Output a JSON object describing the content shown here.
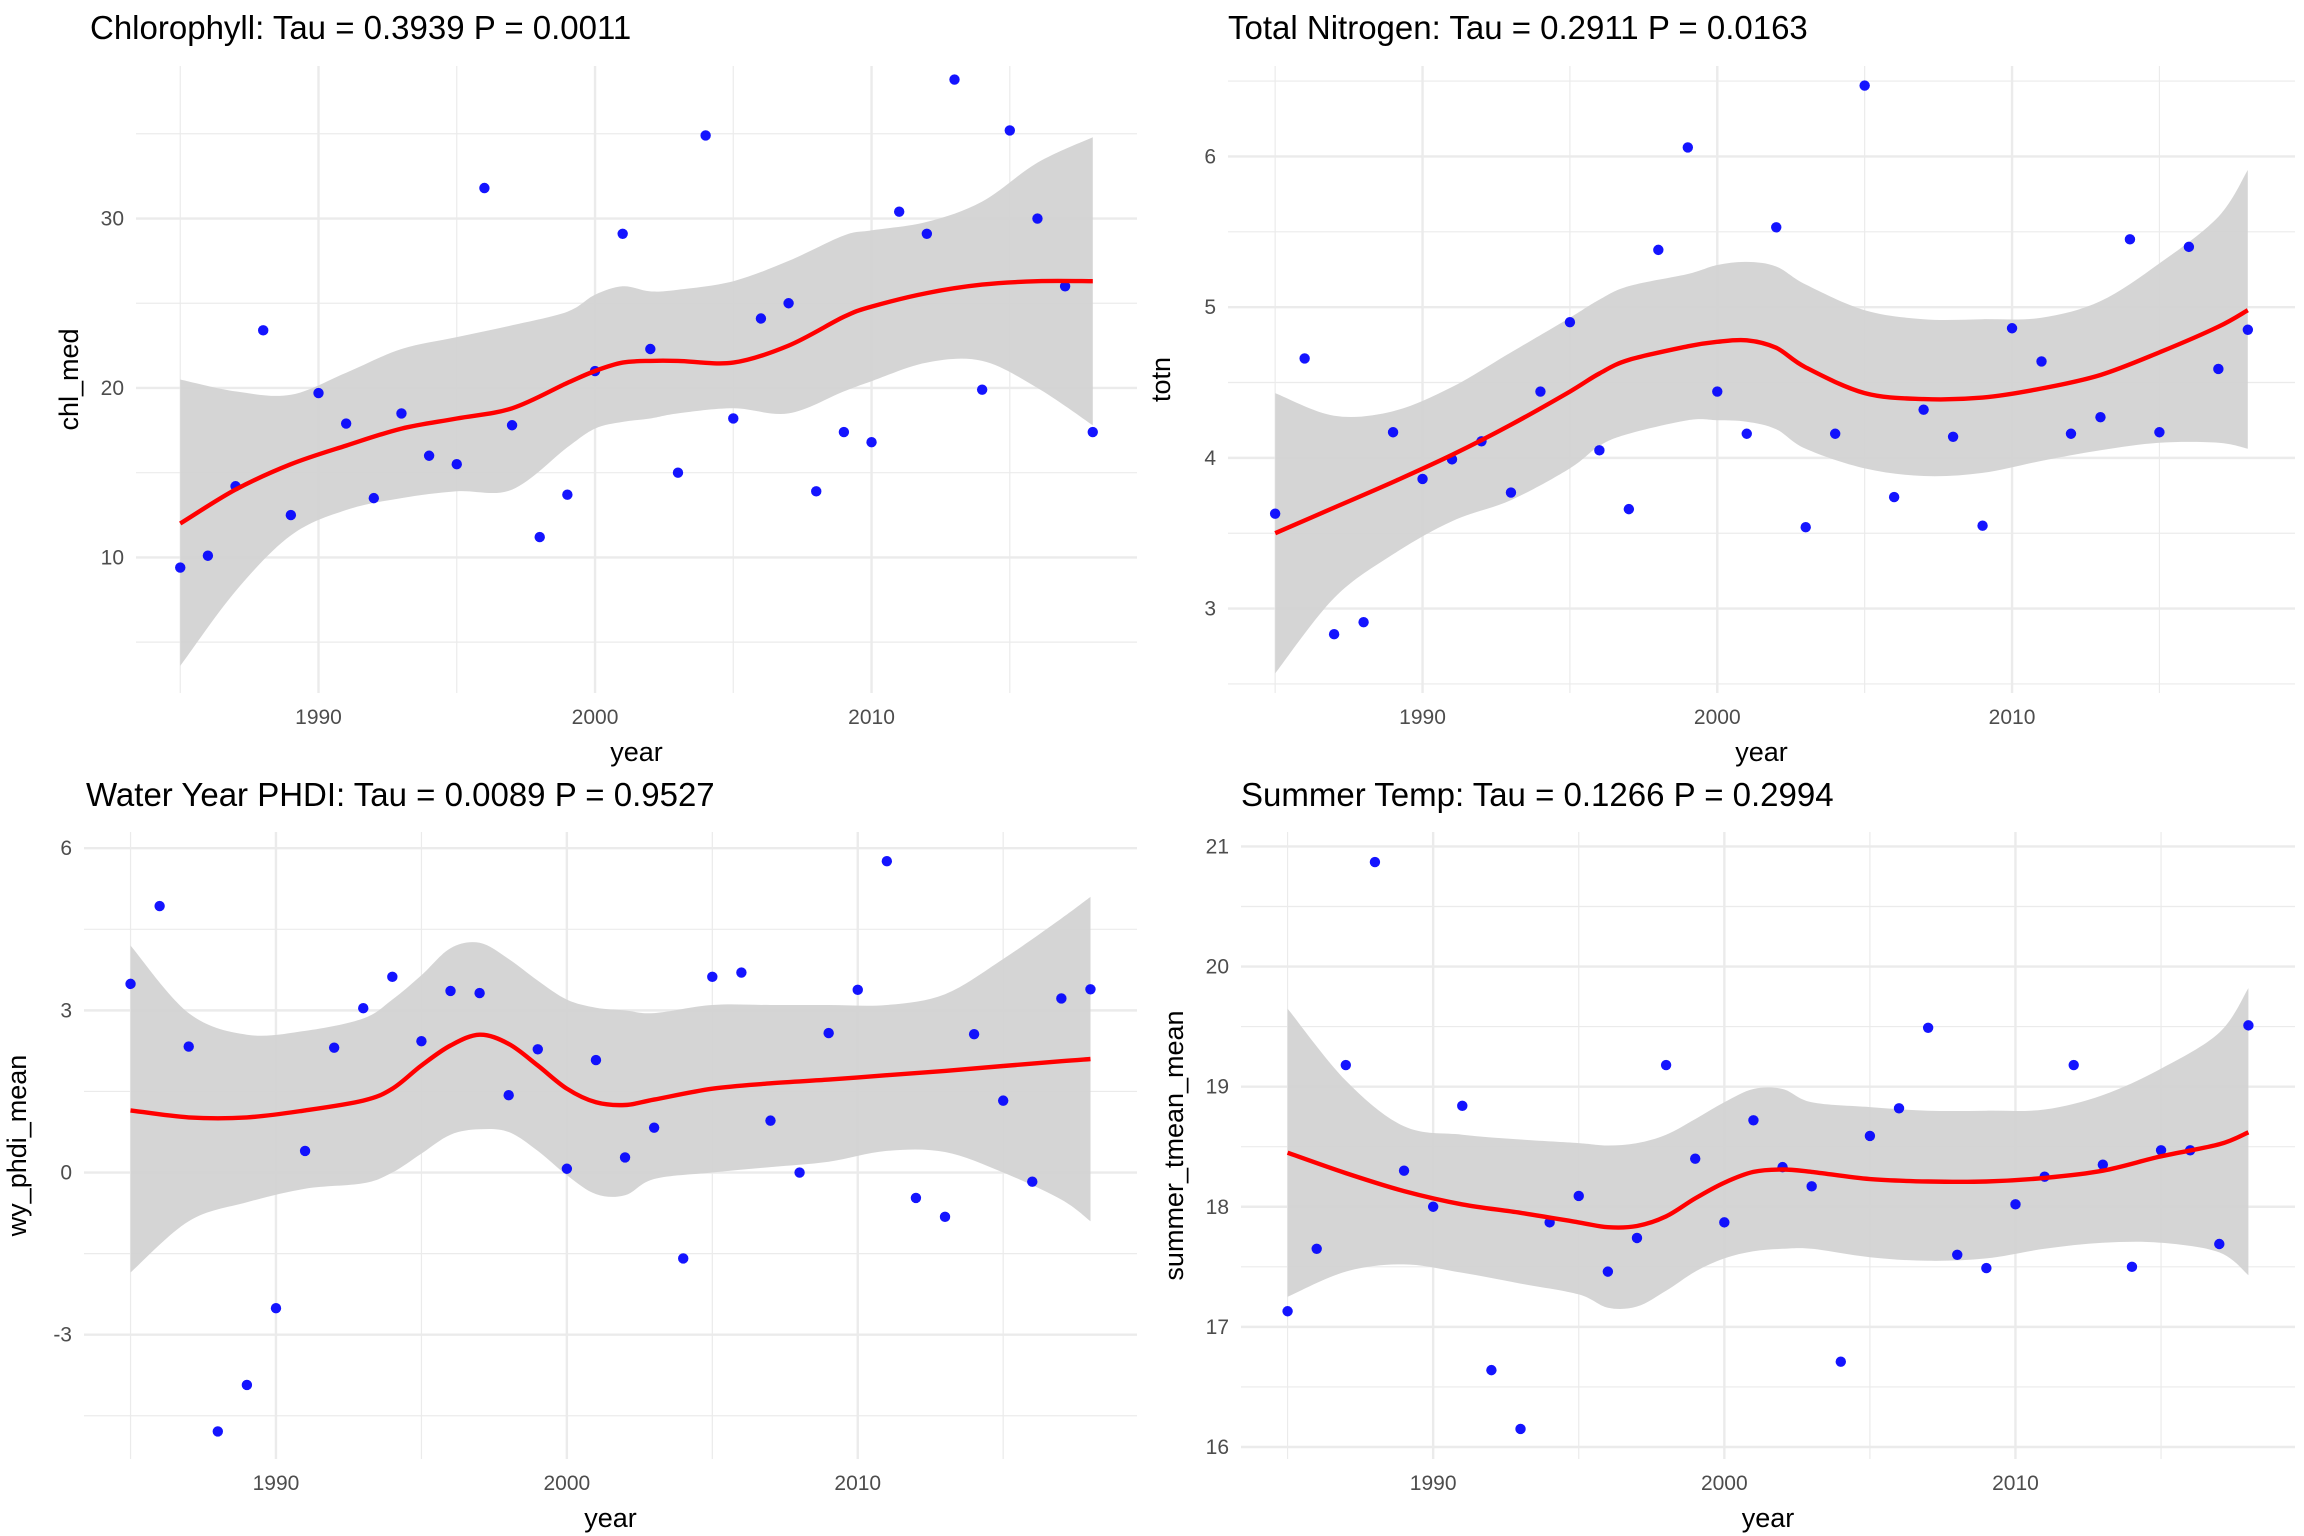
{
  "chart_data": [
    {
      "id": "chl",
      "type": "scatter",
      "title": "Chlorophyll: Tau = 0.3939 P = 0.0011",
      "xlabel": "year",
      "ylabel": "chl_med",
      "xlim": [
        1983.4,
        2019.6
      ],
      "ylim": [
        2.0,
        39.0
      ],
      "xticks": [
        1990,
        2000,
        2010
      ],
      "xminor": [
        1985,
        1995,
        2005,
        2015
      ],
      "yticks": [
        10,
        20,
        30
      ],
      "yminor": [
        5,
        15,
        25,
        35
      ],
      "grid": true,
      "point_color": "#0000ff",
      "smooth_color": "#ff0000",
      "ribbon_color": "#d3d3d3",
      "x": [
        1985,
        1986,
        1987,
        1988,
        1989,
        1990,
        1991,
        1992,
        1993,
        1994,
        1995,
        1996,
        1997,
        1998,
        1999,
        2000,
        2001,
        2002,
        2003,
        2004,
        2005,
        2006,
        2007,
        2008,
        2009,
        2010,
        2011,
        2012,
        2013,
        2014,
        2015,
        2016,
        2017,
        2018
      ],
      "y": [
        9.4,
        10.1,
        14.2,
        23.4,
        12.5,
        19.7,
        17.9,
        13.5,
        18.5,
        16.0,
        15.5,
        31.8,
        17.8,
        11.2,
        13.7,
        21.0,
        29.1,
        22.3,
        15.0,
        34.9,
        18.2,
        24.1,
        25.0,
        13.9,
        17.4,
        16.8,
        30.4,
        29.1,
        38.2,
        19.9,
        35.2,
        30.0,
        26.0,
        17.4
      ],
      "smooth": {
        "x": [
          1985,
          1987,
          1989,
          1991,
          1993,
          1995,
          1997,
          1999,
          2000,
          2001,
          2002,
          2003,
          2005,
          2007,
          2009,
          2010,
          2012,
          2014,
          2016,
          2018
        ],
        "y": [
          12.0,
          14.0,
          15.5,
          16.6,
          17.6,
          18.2,
          18.8,
          20.3,
          21.0,
          21.5,
          21.6,
          21.6,
          21.5,
          22.5,
          24.2,
          24.8,
          25.6,
          26.1,
          26.3,
          26.3
        ],
        "lo": [
          3.6,
          8.0,
          11.3,
          12.8,
          13.5,
          13.9,
          14.0,
          16.5,
          17.6,
          18.0,
          18.2,
          18.5,
          18.8,
          18.5,
          19.8,
          20.4,
          21.5,
          21.6,
          20.0,
          17.8
        ],
        "hi": [
          20.5,
          19.8,
          19.6,
          20.9,
          22.3,
          23.0,
          23.7,
          24.5,
          25.5,
          26.0,
          25.7,
          25.8,
          26.3,
          27.5,
          29.0,
          29.3,
          29.8,
          31.0,
          33.3,
          34.8
        ]
      }
    },
    {
      "id": "totn",
      "type": "scatter",
      "title": "Total Nitrogen: Tau = 0.2911 P = 0.0163",
      "xlabel": "year",
      "ylabel": "totn",
      "xlim": [
        1983.4,
        2019.6
      ],
      "ylim": [
        2.44,
        6.6
      ],
      "xticks": [
        1990,
        2000,
        2010
      ],
      "xminor": [
        1985,
        1995,
        2005,
        2015
      ],
      "yticks": [
        3,
        4,
        5,
        6
      ],
      "yminor": [
        2.5,
        3.5,
        4.5,
        5.5,
        6.5
      ],
      "grid": true,
      "point_color": "#0000ff",
      "smooth_color": "#ff0000",
      "ribbon_color": "#d3d3d3",
      "x": [
        1985,
        1986,
        1987,
        1988,
        1989,
        1990,
        1991,
        1992,
        1993,
        1994,
        1995,
        1996,
        1997,
        1998,
        1999,
        2000,
        2001,
        2002,
        2003,
        2004,
        2005,
        2006,
        2007,
        2008,
        2009,
        2010,
        2011,
        2012,
        2013,
        2014,
        2015,
        2016,
        2017,
        2018
      ],
      "y": [
        3.63,
        4.66,
        2.83,
        2.91,
        4.17,
        3.86,
        3.99,
        4.11,
        3.77,
        4.44,
        4.9,
        4.05,
        3.66,
        5.38,
        6.06,
        4.44,
        4.16,
        5.53,
        3.54,
        4.16,
        6.47,
        3.74,
        4.32,
        4.14,
        3.55,
        4.86,
        4.64,
        4.16,
        4.27,
        5.45,
        4.17,
        5.4,
        4.59,
        4.85
      ],
      "smooth": {
        "x": [
          1985,
          1987,
          1989,
          1991,
          1993,
          1995,
          1996,
          1997,
          1999,
          2000,
          2001,
          2002,
          2003,
          2005,
          2007,
          2009,
          2011,
          2013,
          2015,
          2017,
          2018
        ],
        "y": [
          3.5,
          3.67,
          3.84,
          4.02,
          4.22,
          4.44,
          4.56,
          4.65,
          4.74,
          4.77,
          4.78,
          4.73,
          4.6,
          4.43,
          4.39,
          4.4,
          4.46,
          4.55,
          4.7,
          4.87,
          4.98
        ],
        "lo": [
          2.57,
          3.07,
          3.36,
          3.58,
          3.72,
          3.93,
          4.08,
          4.16,
          4.25,
          4.25,
          4.24,
          4.19,
          4.06,
          3.93,
          3.88,
          3.9,
          3.98,
          4.05,
          4.1,
          4.1,
          4.06
        ],
        "hi": [
          4.43,
          4.28,
          4.31,
          4.47,
          4.7,
          4.93,
          5.05,
          5.14,
          5.22,
          5.28,
          5.3,
          5.27,
          5.15,
          4.98,
          4.92,
          4.92,
          4.93,
          5.04,
          5.29,
          5.6,
          5.91
        ]
      }
    },
    {
      "id": "phdi",
      "type": "scatter",
      "title": "Water Year PHDI: Tau = 0.0089 P = 0.9527",
      "xlabel": "year",
      "ylabel": "wy_phdi_mean",
      "xlim": [
        1983.4,
        2019.6
      ],
      "ylim": [
        -5.3,
        6.3
      ],
      "xticks": [
        1990,
        2000,
        2010
      ],
      "xminor": [
        1985,
        1995,
        2005,
        2015
      ],
      "yticks": [
        -3,
        0,
        3,
        6
      ],
      "yminor": [
        -4.5,
        -1.5,
        1.5,
        4.5
      ],
      "grid": true,
      "point_color": "#0000ff",
      "smooth_color": "#ff0000",
      "ribbon_color": "#d3d3d3",
      "x": [
        1985,
        1986,
        1987,
        1988,
        1989,
        1990,
        1991,
        1992,
        1993,
        1994,
        1995,
        1996,
        1997,
        1998,
        1999,
        2000,
        2001,
        2002,
        2003,
        2004,
        2005,
        2006,
        2007,
        2008,
        2009,
        2010,
        2011,
        2012,
        2013,
        2014,
        2015,
        2016,
        2017,
        2018
      ],
      "y": [
        3.49,
        4.93,
        2.33,
        -4.79,
        -3.93,
        -2.51,
        0.4,
        2.31,
        3.04,
        3.62,
        2.43,
        3.36,
        3.32,
        1.43,
        2.28,
        0.07,
        2.08,
        0.28,
        0.83,
        -1.59,
        3.62,
        3.7,
        0.96,
        0.0,
        2.58,
        3.38,
        5.76,
        -0.47,
        -0.82,
        2.56,
        1.33,
        -0.17,
        3.22,
        3.39
      ],
      "smooth": {
        "x": [
          1985,
          1987,
          1989,
          1991,
          1993,
          1994,
          1995,
          1996,
          1997,
          1998,
          1999,
          2000,
          2001,
          2002,
          2003,
          2005,
          2007,
          2009,
          2011,
          2013,
          2015,
          2017,
          2018
        ],
        "y": [
          1.15,
          1.02,
          1.02,
          1.15,
          1.33,
          1.55,
          1.98,
          2.35,
          2.55,
          2.38,
          1.98,
          1.55,
          1.3,
          1.25,
          1.35,
          1.55,
          1.65,
          1.72,
          1.8,
          1.88,
          1.97,
          2.06,
          2.1
        ],
        "lo": [
          -1.85,
          -0.9,
          -0.55,
          -0.3,
          -0.2,
          0.0,
          0.35,
          0.7,
          0.8,
          0.75,
          0.4,
          -0.05,
          -0.4,
          -0.42,
          -0.12,
          0.0,
          0.1,
          0.2,
          0.4,
          0.38,
          0.0,
          -0.5,
          -0.9
        ],
        "hi": [
          4.2,
          2.95,
          2.55,
          2.62,
          2.85,
          3.2,
          3.65,
          4.15,
          4.25,
          3.95,
          3.55,
          3.2,
          3.05,
          3.0,
          2.95,
          3.1,
          3.1,
          3.1,
          3.1,
          3.3,
          3.95,
          4.7,
          5.1
        ]
      }
    },
    {
      "id": "temp",
      "type": "scatter",
      "title": "Summer Temp: Tau = 0.1266 P = 0.2994",
      "xlabel": "year",
      "ylabel": "summer_tmean_mean",
      "xlim": [
        1983.4,
        2019.6
      ],
      "ylim": [
        15.9,
        21.12
      ],
      "xticks": [
        1990,
        2000,
        2010
      ],
      "xminor": [
        1985,
        1995,
        2005,
        2015
      ],
      "yticks": [
        16,
        17,
        18,
        19,
        20,
        21
      ],
      "yminor": [
        16.5,
        17.5,
        18.5,
        19.5,
        20.5
      ],
      "grid": true,
      "point_color": "#0000ff",
      "smooth_color": "#ff0000",
      "ribbon_color": "#d3d3d3",
      "x": [
        1985,
        1986,
        1987,
        1988,
        1989,
        1990,
        1991,
        1992,
        1993,
        1994,
        1995,
        1996,
        1997,
        1998,
        1999,
        2000,
        2001,
        2002,
        2003,
        2004,
        2005,
        2006,
        2007,
        2008,
        2009,
        2010,
        2011,
        2012,
        2013,
        2014,
        2015,
        2016,
        2017,
        2018
      ],
      "y": [
        17.13,
        17.65,
        19.18,
        20.87,
        18.3,
        18.0,
        18.84,
        16.64,
        16.15,
        17.87,
        18.09,
        17.46,
        17.74,
        19.18,
        18.4,
        17.87,
        18.72,
        18.33,
        18.17,
        16.71,
        18.59,
        18.82,
        19.49,
        17.6,
        17.49,
        18.02,
        18.25,
        19.18,
        18.35,
        17.5,
        18.47,
        18.47,
        17.69,
        19.51
      ],
      "smooth": {
        "x": [
          1985,
          1987,
          1989,
          1991,
          1993,
          1995,
          1996,
          1997,
          1998,
          1999,
          2000,
          2001,
          2002,
          2003,
          2005,
          2007,
          2009,
          2011,
          2013,
          2015,
          2017,
          2018
        ],
        "y": [
          18.45,
          18.28,
          18.13,
          18.02,
          17.95,
          17.87,
          17.83,
          17.84,
          17.92,
          18.07,
          18.2,
          18.29,
          18.31,
          18.29,
          18.23,
          18.21,
          18.21,
          18.24,
          18.3,
          18.42,
          18.52,
          18.62
        ],
        "lo": [
          17.25,
          17.46,
          17.52,
          17.45,
          17.36,
          17.27,
          17.16,
          17.17,
          17.3,
          17.46,
          17.57,
          17.63,
          17.65,
          17.65,
          17.58,
          17.55,
          17.57,
          17.65,
          17.7,
          17.7,
          17.62,
          17.43
        ],
        "hi": [
          19.65,
          19.05,
          18.67,
          18.6,
          18.56,
          18.53,
          18.51,
          18.53,
          18.6,
          18.73,
          18.87,
          18.98,
          18.98,
          18.87,
          18.83,
          18.8,
          18.8,
          18.81,
          18.93,
          19.15,
          19.45,
          19.82
        ]
      }
    }
  ]
}
